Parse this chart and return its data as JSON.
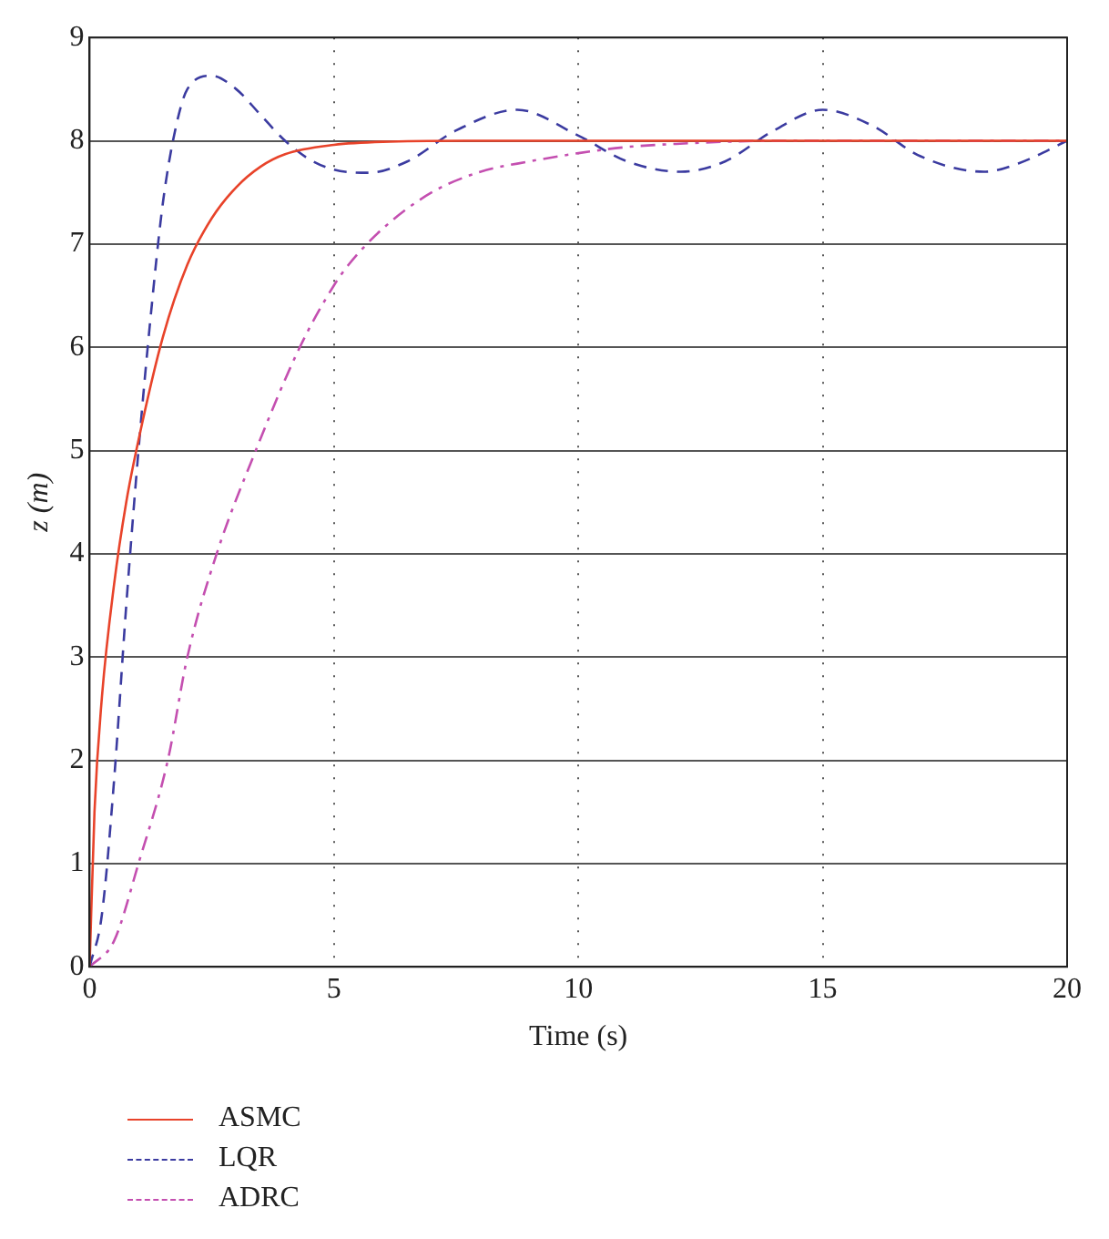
{
  "chart_data": {
    "type": "line",
    "xlabel": "Time (s)",
    "ylabel": "z (m)",
    "xlim": [
      0,
      20
    ],
    "ylim": [
      0,
      9
    ],
    "xticks": [
      0,
      5,
      10,
      15,
      20
    ],
    "yticks": [
      0,
      1,
      2,
      3,
      4,
      5,
      6,
      7,
      8,
      9
    ],
    "grid": true,
    "legend": "bottom",
    "marker": "none",
    "series": [
      {
        "name": "ASMC",
        "color": "#e8432a",
        "line_style": "solid",
        "x": [
          0,
          0.1,
          0.25,
          0.5,
          0.75,
          1,
          1.5,
          2,
          2.5,
          3,
          3.5,
          4,
          5,
          6,
          8,
          20
        ],
        "values": [
          0,
          1.5,
          2.6,
          3.7,
          4.5,
          5.1,
          6.1,
          6.8,
          7.25,
          7.55,
          7.75,
          7.87,
          7.96,
          7.99,
          8,
          8
        ]
      },
      {
        "name": "LQR",
        "color": "#3b3ba0",
        "line_style": "dashed",
        "x": [
          0,
          0.25,
          0.5,
          0.75,
          1,
          1.25,
          1.5,
          1.75,
          2,
          2.5,
          3,
          3.5,
          4,
          4.5,
          5,
          5.7,
          6.5,
          7.5,
          8.75,
          10,
          11,
          12.1,
          13,
          14,
          15,
          16,
          17,
          18.3,
          19,
          20
        ],
        "values": [
          0,
          0.5,
          1.8,
          3.5,
          5,
          6.3,
          7.4,
          8.1,
          8.5,
          8.63,
          8.5,
          8.25,
          8,
          7.82,
          7.72,
          7.69,
          7.8,
          8.1,
          8.3,
          8.05,
          7.8,
          7.7,
          7.8,
          8.1,
          8.3,
          8.15,
          7.85,
          7.7,
          7.78,
          8
        ]
      },
      {
        "name": "ADRC",
        "color": "#c44fb0",
        "line_style": "dashdot",
        "x": [
          0,
          0.5,
          1,
          1.6,
          2,
          2.6,
          3.4,
          4.3,
          5,
          5.3,
          6,
          7,
          8,
          9,
          10,
          11,
          12,
          14,
          20
        ],
        "values": [
          0,
          0.25,
          1,
          2,
          3,
          4,
          5,
          6,
          6.6,
          6.8,
          7.15,
          7.5,
          7.7,
          7.8,
          7.88,
          7.94,
          7.97,
          8,
          8
        ]
      }
    ]
  }
}
